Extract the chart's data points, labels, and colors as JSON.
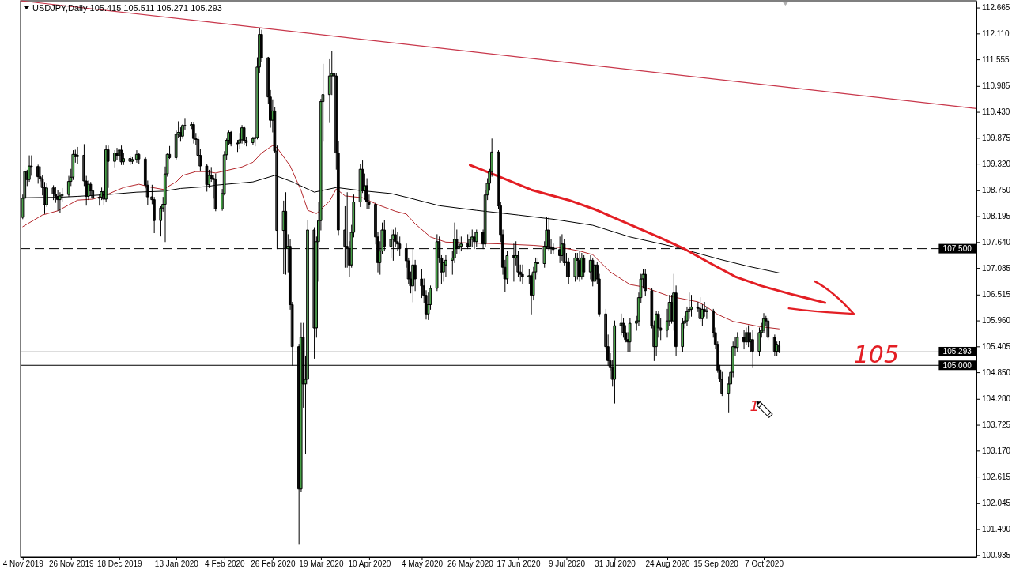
{
  "chart_data": {
    "type": "candlestick",
    "title": "USDJPY,Daily 105.415 105.511 105.271 105.293",
    "x": [
      "2019-11-04",
      "2019-11-05",
      "2019-11-06",
      "2019-11-07",
      "2019-11-08",
      "2019-11-11",
      "2019-11-12",
      "2019-11-13",
      "2019-11-14",
      "2019-11-15",
      "2019-11-18",
      "2019-11-19",
      "2019-11-20",
      "2019-11-21",
      "2019-11-22",
      "2019-11-25",
      "2019-11-26",
      "2019-11-27",
      "2019-11-28",
      "2019-11-29",
      "2019-12-02",
      "2019-12-03",
      "2019-12-04",
      "2019-12-05",
      "2019-12-06",
      "2019-12-09",
      "2019-12-10",
      "2019-12-11",
      "2019-12-12",
      "2019-12-13",
      "2019-12-16",
      "2019-12-17",
      "2019-12-18",
      "2019-12-19",
      "2019-12-20",
      "2019-12-23",
      "2019-12-24",
      "2019-12-26",
      "2019-12-27",
      "2019-12-30",
      "2019-12-31",
      "2020-01-02",
      "2020-01-03",
      "2020-01-06",
      "2020-01-07",
      "2020-01-08",
      "2020-01-09",
      "2020-01-10",
      "2020-01-13",
      "2020-01-14",
      "2020-01-15",
      "2020-01-16",
      "2020-01-17",
      "2020-01-20",
      "2020-01-21",
      "2020-01-22",
      "2020-01-23",
      "2020-01-24",
      "2020-01-27",
      "2020-01-28",
      "2020-01-29",
      "2020-01-30",
      "2020-01-31",
      "2020-02-03",
      "2020-02-04",
      "2020-02-05",
      "2020-02-06",
      "2020-02-07",
      "2020-02-10",
      "2020-02-11",
      "2020-02-12",
      "2020-02-13",
      "2020-02-14",
      "2020-02-17",
      "2020-02-18",
      "2020-02-19",
      "2020-02-20",
      "2020-02-21",
      "2020-02-24",
      "2020-02-25",
      "2020-02-26",
      "2020-02-27",
      "2020-02-28",
      "2020-03-02",
      "2020-03-03",
      "2020-03-04",
      "2020-03-05",
      "2020-03-06",
      "2020-03-09",
      "2020-03-10",
      "2020-03-11",
      "2020-03-12",
      "2020-03-13",
      "2020-03-16",
      "2020-03-17",
      "2020-03-18",
      "2020-03-19",
      "2020-03-20",
      "2020-03-23",
      "2020-03-24",
      "2020-03-25",
      "2020-03-26",
      "2020-03-27",
      "2020-03-30",
      "2020-03-31",
      "2020-04-01",
      "2020-04-02",
      "2020-04-03",
      "2020-04-06",
      "2020-04-07",
      "2020-04-08",
      "2020-04-09",
      "2020-04-10",
      "2020-04-13",
      "2020-04-14",
      "2020-04-15",
      "2020-04-16",
      "2020-04-17",
      "2020-04-20",
      "2020-04-21",
      "2020-04-22",
      "2020-04-23",
      "2020-04-24",
      "2020-04-27",
      "2020-04-28",
      "2020-04-29",
      "2020-04-30",
      "2020-05-01",
      "2020-05-04",
      "2020-05-05",
      "2020-05-06",
      "2020-05-07",
      "2020-05-08",
      "2020-05-11",
      "2020-05-12",
      "2020-05-13",
      "2020-05-14",
      "2020-05-15",
      "2020-05-18",
      "2020-05-19",
      "2020-05-20",
      "2020-05-21",
      "2020-05-22",
      "2020-05-25",
      "2020-05-26",
      "2020-05-27",
      "2020-05-28",
      "2020-05-29",
      "2020-06-01",
      "2020-06-02",
      "2020-06-03",
      "2020-06-04",
      "2020-06-05",
      "2020-06-08",
      "2020-06-09",
      "2020-06-10",
      "2020-06-11",
      "2020-06-12",
      "2020-06-15",
      "2020-06-16",
      "2020-06-17",
      "2020-06-18",
      "2020-06-19",
      "2020-06-22",
      "2020-06-23",
      "2020-06-24",
      "2020-06-25",
      "2020-06-26",
      "2020-06-29",
      "2020-06-30",
      "2020-07-01",
      "2020-07-02",
      "2020-07-03",
      "2020-07-06",
      "2020-07-07",
      "2020-07-08",
      "2020-07-09",
      "2020-07-10",
      "2020-07-13",
      "2020-07-14",
      "2020-07-15",
      "2020-07-16",
      "2020-07-17",
      "2020-07-20",
      "2020-07-21",
      "2020-07-22",
      "2020-07-23",
      "2020-07-24",
      "2020-07-27",
      "2020-07-28",
      "2020-07-29",
      "2020-07-30",
      "2020-07-31",
      "2020-08-03",
      "2020-08-04",
      "2020-08-05",
      "2020-08-06",
      "2020-08-07",
      "2020-08-10",
      "2020-08-11",
      "2020-08-12",
      "2020-08-13",
      "2020-08-14",
      "2020-08-17",
      "2020-08-18",
      "2020-08-19",
      "2020-08-20",
      "2020-08-21",
      "2020-08-24",
      "2020-08-25",
      "2020-08-26",
      "2020-08-27",
      "2020-08-28",
      "2020-08-31",
      "2020-09-01",
      "2020-09-02",
      "2020-09-03",
      "2020-09-04",
      "2020-09-07",
      "2020-09-08",
      "2020-09-09",
      "2020-09-10",
      "2020-09-11",
      "2020-09-14",
      "2020-09-15",
      "2020-09-16",
      "2020-09-17",
      "2020-09-18",
      "2020-09-21",
      "2020-09-22",
      "2020-09-23",
      "2020-09-24",
      "2020-09-25",
      "2020-09-28",
      "2020-09-29",
      "2020-09-30",
      "2020-10-01",
      "2020-10-02",
      "2020-10-05",
      "2020-10-06",
      "2020-10-07",
      "2020-10-08",
      "2020-10-09",
      "2020-10-12",
      "2020-10-13",
      "2020-10-14"
    ],
    "ohlc": [
      [
        108.17,
        108.65,
        108.14,
        108.58
      ],
      [
        108.58,
        109.24,
        108.55,
        109.15
      ],
      [
        109.15,
        109.18,
        108.85,
        108.98
      ],
      [
        108.98,
        109.49,
        108.94,
        109.27
      ],
      [
        109.27,
        109.49,
        109.07,
        109.26
      ],
      [
        109.26,
        109.29,
        108.9,
        109.04
      ],
      [
        109.04,
        109.25,
        108.95,
        109.0
      ],
      [
        109.0,
        109.06,
        108.65,
        108.81
      ],
      [
        108.81,
        108.92,
        108.25,
        108.44
      ],
      [
        108.44,
        108.9,
        108.4,
        108.8
      ],
      [
        108.8,
        108.85,
        108.55,
        108.67
      ],
      [
        108.67,
        108.82,
        108.49,
        108.62
      ],
      [
        108.62,
        108.74,
        108.32,
        108.55
      ],
      [
        108.55,
        108.7,
        108.28,
        108.63
      ],
      [
        108.63,
        108.79,
        108.52,
        108.66
      ],
      [
        108.66,
        109.05,
        108.62,
        108.94
      ],
      [
        108.94,
        109.2,
        108.85,
        109.03
      ],
      [
        109.03,
        109.6,
        108.98,
        109.52
      ],
      [
        109.52,
        109.61,
        109.35,
        109.47
      ],
      [
        109.47,
        109.67,
        109.32,
        109.5
      ],
      [
        109.5,
        109.73,
        108.85,
        108.95
      ],
      [
        108.95,
        109.05,
        108.43,
        108.62
      ],
      [
        108.62,
        108.95,
        108.55,
        108.88
      ],
      [
        108.88,
        108.92,
        108.65,
        108.74
      ],
      [
        108.74,
        108.93,
        108.45,
        108.58
      ],
      [
        108.58,
        108.66,
        108.43,
        108.6
      ],
      [
        108.6,
        108.8,
        108.55,
        108.72
      ],
      [
        108.72,
        108.76,
        108.44,
        108.56
      ],
      [
        108.56,
        109.7,
        108.5,
        109.62
      ],
      [
        109.62,
        109.7,
        108.81,
        109.37
      ],
      [
        109.37,
        109.6,
        109.25,
        109.55
      ],
      [
        109.55,
        109.65,
        109.4,
        109.49
      ],
      [
        109.49,
        109.62,
        109.4,
        109.61
      ],
      [
        109.61,
        109.7,
        109.3,
        109.36
      ],
      [
        109.36,
        109.55,
        109.3,
        109.43
      ],
      [
        109.43,
        109.48,
        109.3,
        109.37
      ],
      [
        109.37,
        109.45,
        109.33,
        109.41
      ],
      [
        109.41,
        109.6,
        109.35,
        109.52
      ],
      [
        109.52,
        109.55,
        109.33,
        109.42
      ],
      [
        109.42,
        109.45,
        108.8,
        108.86
      ],
      [
        108.86,
        108.95,
        108.45,
        108.61
      ],
      [
        108.61,
        108.86,
        108.46,
        108.55
      ],
      [
        108.55,
        108.6,
        107.84,
        108.1
      ],
      [
        108.1,
        108.4,
        107.77,
        108.37
      ],
      [
        108.37,
        108.6,
        108.3,
        108.45
      ],
      [
        108.45,
        109.25,
        107.65,
        109.1
      ],
      [
        109.1,
        109.55,
        109.05,
        109.52
      ],
      [
        109.52,
        109.69,
        109.43,
        109.45
      ],
      [
        109.45,
        110.02,
        109.42,
        109.95
      ],
      [
        109.95,
        110.22,
        109.88,
        109.99
      ],
      [
        109.99,
        110.09,
        109.8,
        109.91
      ],
      [
        109.91,
        110.16,
        109.86,
        110.14
      ],
      [
        110.14,
        110.29,
        110.06,
        110.13
      ],
      [
        110.13,
        110.2,
        110.07,
        110.16
      ],
      [
        110.16,
        110.2,
        109.76,
        109.86
      ],
      [
        109.86,
        109.97,
        109.72,
        109.84
      ],
      [
        109.84,
        109.9,
        109.46,
        109.5
      ],
      [
        109.5,
        109.62,
        109.16,
        109.27
      ],
      [
        109.27,
        109.3,
        108.73,
        108.87
      ],
      [
        108.87,
        109.18,
        108.81,
        109.07
      ],
      [
        109.07,
        109.24,
        108.94,
        109.01
      ],
      [
        109.01,
        109.06,
        108.58,
        108.98
      ],
      [
        108.98,
        109.1,
        108.31,
        108.35
      ],
      [
        108.35,
        108.77,
        108.32,
        108.68
      ],
      [
        108.68,
        109.58,
        108.65,
        109.51
      ],
      [
        109.51,
        109.85,
        109.4,
        109.82
      ],
      [
        109.82,
        110.02,
        109.72,
        109.99
      ],
      [
        109.99,
        110.01,
        109.7,
        109.75
      ],
      [
        109.75,
        109.82,
        109.58,
        109.76
      ],
      [
        109.76,
        109.97,
        109.64,
        109.83
      ],
      [
        109.83,
        110.14,
        109.76,
        110.09
      ],
      [
        110.09,
        110.1,
        109.74,
        109.82
      ],
      [
        109.82,
        109.89,
        109.7,
        109.77
      ],
      [
        109.77,
        109.89,
        109.73,
        109.86
      ],
      [
        109.86,
        109.95,
        109.7,
        109.88
      ],
      [
        109.88,
        111.59,
        109.85,
        111.39
      ],
      [
        111.39,
        112.22,
        111.27,
        112.09
      ],
      [
        112.09,
        112.18,
        111.51,
        111.59
      ],
      [
        111.59,
        111.6,
        110.6,
        110.75
      ],
      [
        110.75,
        110.89,
        110.1,
        110.25
      ],
      [
        110.25,
        110.69,
        110.0,
        110.45
      ],
      [
        110.45,
        110.53,
        109.55,
        109.59
      ],
      [
        109.59,
        109.7,
        107.5,
        107.89
      ],
      [
        107.89,
        108.52,
        106.96,
        108.3
      ],
      [
        108.3,
        108.7,
        106.95,
        107.5
      ],
      [
        107.5,
        107.8,
        107.0,
        107.55
      ],
      [
        107.55,
        107.7,
        106.2,
        106.3
      ],
      [
        106.3,
        106.35,
        105.0,
        105.4
      ],
      [
        105.4,
        105.45,
        101.18,
        102.35
      ],
      [
        102.35,
        105.9,
        102.3,
        105.6
      ],
      [
        105.6,
        105.9,
        104.1,
        104.6
      ],
      [
        104.6,
        105.2,
        103.1,
        104.7
      ],
      [
        104.7,
        108.1,
        104.6,
        107.9
      ],
      [
        107.9,
        107.95,
        105.15,
        105.8
      ],
      [
        105.8,
        107.75,
        105.6,
        107.65
      ],
      [
        107.65,
        108.5,
        106.8,
        108.1
      ],
      [
        108.1,
        110.7,
        107.9,
        110.65
      ],
      [
        110.65,
        111.45,
        109.8,
        110.8
      ],
      [
        110.8,
        111.55,
        110.2,
        111.2
      ],
      [
        111.2,
        111.72,
        110.8,
        111.25
      ],
      [
        111.25,
        111.7,
        110.7,
        111.2
      ],
      [
        111.2,
        111.25,
        109.2,
        109.55
      ],
      [
        109.55,
        109.8,
        107.8,
        107.9
      ],
      [
        107.9,
        108.4,
        107.1,
        107.55
      ],
      [
        107.55,
        108.7,
        107.1,
        107.5
      ],
      [
        107.5,
        107.65,
        106.9,
        107.15
      ],
      [
        107.15,
        108.0,
        107.1,
        107.85
      ],
      [
        107.85,
        108.65,
        107.75,
        108.5
      ],
      [
        108.5,
        109.3,
        108.4,
        109.2
      ],
      [
        109.2,
        109.38,
        108.7,
        108.75
      ],
      [
        108.75,
        109.1,
        108.55,
        108.85
      ],
      [
        108.85,
        109.0,
        108.35,
        108.5
      ],
      [
        108.5,
        108.65,
        108.35,
        108.45
      ],
      [
        108.45,
        108.5,
        107.6,
        107.75
      ],
      [
        107.75,
        107.85,
        107.0,
        107.2
      ],
      [
        107.2,
        107.65,
        106.95,
        107.45
      ],
      [
        107.45,
        108.05,
        107.4,
        107.9
      ],
      [
        107.9,
        108.1,
        107.45,
        107.55
      ],
      [
        107.55,
        107.9,
        107.3,
        107.7
      ],
      [
        107.7,
        107.9,
        107.25,
        107.8
      ],
      [
        107.8,
        107.95,
        107.55,
        107.65
      ],
      [
        107.65,
        107.85,
        107.45,
        107.6
      ],
      [
        107.6,
        107.75,
        107.35,
        107.5
      ],
      [
        107.5,
        107.6,
        107.1,
        107.24
      ],
      [
        107.24,
        107.3,
        106.75,
        106.85
      ],
      [
        106.85,
        107.0,
        106.55,
        106.7
      ],
      [
        106.7,
        107.5,
        106.36,
        107.15
      ],
      [
        107.15,
        107.25,
        106.6,
        106.85
      ],
      [
        106.85,
        107.05,
        106.45,
        106.7
      ],
      [
        106.7,
        106.85,
        106.35,
        106.5
      ],
      [
        106.5,
        106.6,
        105.99,
        106.1
      ],
      [
        106.1,
        106.55,
        105.98,
        106.3
      ],
      [
        106.3,
        106.7,
        106.2,
        106.65
      ],
      [
        106.65,
        107.8,
        106.6,
        107.65
      ],
      [
        107.65,
        107.75,
        107.2,
        107.3
      ],
      [
        107.3,
        107.35,
        106.75,
        107.0
      ],
      [
        107.0,
        107.3,
        106.8,
        107.2
      ],
      [
        107.15,
        107.35,
        106.9,
        107.25
      ],
      [
        107.25,
        107.45,
        106.95,
        107.3
      ],
      [
        107.3,
        108.05,
        107.2,
        107.7
      ],
      [
        107.7,
        107.9,
        107.4,
        107.5
      ],
      [
        107.5,
        107.75,
        107.4,
        107.55
      ],
      [
        107.55,
        107.75,
        107.45,
        107.6
      ],
      [
        107.6,
        107.8,
        107.5,
        107.55
      ],
      [
        107.55,
        107.85,
        107.5,
        107.7
      ],
      [
        107.7,
        107.9,
        107.55,
        107.75
      ],
      [
        107.75,
        107.85,
        107.5,
        107.65
      ],
      [
        107.65,
        107.9,
        107.55,
        107.85
      ],
      [
        107.85,
        107.9,
        107.5,
        107.6
      ],
      [
        107.6,
        108.75,
        107.55,
        108.65
      ],
      [
        108.65,
        109.0,
        108.55,
        108.9
      ],
      [
        108.9,
        109.2,
        108.75,
        109.15
      ],
      [
        109.15,
        109.85,
        109.05,
        109.57
      ],
      [
        109.57,
        109.6,
        108.35,
        108.42
      ],
      [
        108.42,
        108.5,
        107.65,
        107.8
      ],
      [
        107.8,
        107.9,
        106.95,
        107.1
      ],
      [
        107.1,
        107.25,
        106.58,
        106.85
      ],
      [
        106.85,
        107.45,
        106.75,
        107.35
      ],
      [
        107.35,
        107.6,
        106.8,
        107.3
      ],
      [
        107.3,
        107.65,
        107.15,
        107.35
      ],
      [
        107.35,
        107.45,
        106.9,
        107.0
      ],
      [
        107.0,
        107.15,
        106.8,
        106.95
      ],
      [
        106.95,
        107.15,
        106.75,
        106.9
      ],
      [
        106.9,
        107.05,
        106.75,
        106.92
      ],
      [
        106.92,
        106.95,
        106.1,
        106.5
      ],
      [
        106.5,
        107.1,
        106.4,
        107.0
      ],
      [
        107.0,
        107.3,
        106.85,
        107.2
      ],
      [
        107.2,
        107.3,
        106.95,
        107.18
      ],
      [
        107.18,
        107.65,
        107.1,
        107.55
      ],
      [
        107.55,
        108.17,
        107.5,
        107.9
      ],
      [
        107.9,
        108.16,
        107.45,
        107.5
      ],
      [
        107.5,
        107.7,
        107.4,
        107.52
      ],
      [
        107.52,
        107.6,
        107.4,
        107.48
      ],
      [
        107.48,
        107.75,
        107.2,
        107.35
      ],
      [
        107.35,
        107.8,
        107.25,
        107.6
      ],
      [
        107.6,
        107.7,
        107.15,
        107.2
      ],
      [
        107.2,
        107.4,
        106.9,
        107.22
      ],
      [
        107.22,
        107.3,
        106.75,
        106.9
      ],
      [
        106.9,
        107.4,
        106.8,
        107.3
      ],
      [
        107.3,
        107.4,
        106.85,
        107.25
      ],
      [
        107.25,
        107.45,
        106.8,
        106.9
      ],
      [
        106.9,
        107.4,
        106.85,
        107.3
      ],
      [
        107.3,
        107.35,
        106.9,
        107.0
      ],
      [
        107.0,
        107.35,
        106.85,
        107.25
      ],
      [
        107.25,
        107.3,
        106.7,
        106.8
      ],
      [
        106.8,
        107.25,
        106.65,
        107.15
      ],
      [
        107.15,
        107.2,
        106.75,
        106.85
      ],
      [
        106.85,
        106.95,
        106.05,
        106.1
      ],
      [
        106.1,
        106.2,
        105.35,
        105.4
      ],
      [
        105.4,
        105.65,
        105.0,
        105.1
      ],
      [
        105.1,
        105.25,
        104.9,
        104.95
      ],
      [
        104.95,
        105.1,
        104.55,
        104.7
      ],
      [
        104.7,
        105.95,
        104.19,
        105.85
      ],
      [
        105.85,
        106.1,
        105.65,
        105.9
      ],
      [
        105.9,
        106.0,
        105.6,
        105.7
      ],
      [
        105.7,
        105.85,
        105.5,
        105.55
      ],
      [
        105.55,
        105.7,
        105.3,
        105.5
      ],
      [
        105.5,
        106.0,
        105.3,
        105.9
      ],
      [
        105.9,
        106.05,
        105.75,
        105.95
      ],
      [
        105.95,
        106.55,
        105.85,
        106.45
      ],
      [
        106.45,
        106.95,
        106.35,
        106.85
      ],
      [
        106.85,
        107.05,
        106.65,
        106.95
      ],
      [
        106.95,
        107.05,
        106.5,
        106.6
      ],
      [
        106.6,
        106.65,
        105.8,
        105.85
      ],
      [
        105.85,
        105.95,
        105.1,
        105.4
      ],
      [
        105.4,
        106.15,
        105.2,
        106.1
      ],
      [
        106.1,
        106.15,
        105.6,
        105.8
      ],
      [
        105.8,
        106.0,
        105.55,
        105.75
      ],
      [
        105.75,
        106.2,
        105.6,
        105.95
      ],
      [
        105.95,
        106.5,
        105.85,
        106.35
      ],
      [
        106.35,
        106.5,
        105.9,
        105.95
      ],
      [
        105.95,
        106.95,
        105.75,
        106.55
      ],
      [
        106.55,
        106.7,
        105.2,
        105.4
      ],
      [
        105.4,
        106.0,
        105.3,
        105.9
      ],
      [
        105.9,
        106.05,
        105.8,
        105.95
      ],
      [
        105.95,
        106.25,
        105.85,
        106.15
      ],
      [
        106.15,
        106.55,
        106.0,
        106.2
      ],
      [
        106.2,
        106.5,
        106.05,
        106.25
      ],
      [
        106.25,
        106.35,
        106.15,
        106.22
      ],
      [
        106.22,
        106.45,
        105.95,
        106.0
      ],
      [
        106.0,
        106.3,
        105.85,
        106.2
      ],
      [
        106.2,
        106.35,
        106.05,
        106.15
      ],
      [
        106.15,
        106.25,
        106.0,
        106.17
      ],
      [
        106.17,
        106.2,
        105.6,
        105.7
      ],
      [
        105.7,
        105.8,
        105.35,
        105.45
      ],
      [
        105.45,
        105.5,
        104.85,
        104.9
      ],
      [
        104.9,
        105.0,
        104.65,
        104.7
      ],
      [
        104.7,
        104.85,
        104.35,
        104.4
      ],
      [
        104.4,
        104.75,
        104.0,
        104.6
      ],
      [
        104.6,
        104.95,
        104.45,
        104.85
      ],
      [
        104.85,
        105.5,
        104.75,
        105.4
      ],
      [
        105.4,
        105.6,
        105.2,
        105.38
      ],
      [
        105.38,
        105.7,
        105.3,
        105.6
      ],
      [
        105.6,
        105.75,
        105.35,
        105.5
      ],
      [
        105.5,
        105.8,
        105.45,
        105.7
      ],
      [
        105.7,
        105.85,
        105.4,
        105.5
      ],
      [
        105.5,
        105.7,
        105.3,
        105.55
      ],
      [
        105.55,
        105.75,
        104.95,
        105.3
      ],
      [
        105.3,
        105.8,
        105.2,
        105.7
      ],
      [
        105.7,
        105.9,
        105.6,
        105.75
      ],
      [
        105.75,
        106.11,
        105.7,
        106.0
      ],
      [
        106.0,
        106.05,
        105.85,
        105.95
      ],
      [
        105.95,
        106.0,
        105.55,
        105.6
      ],
      [
        105.6,
        105.65,
        105.2,
        105.3
      ],
      [
        105.3,
        105.5,
        105.2,
        105.45
      ],
      [
        105.415,
        105.511,
        105.271,
        105.293
      ]
    ],
    "series": [
      {
        "type": "line",
        "color": "#b4282d",
        "x": [
          "2019-11-04",
          "2019-11-13",
          "2019-11-20",
          "2019-11-29",
          "2019-12-06",
          "2019-12-13",
          "2019-12-20",
          "2019-12-27",
          "2020-01-02",
          "2020-01-07",
          "2020-01-13",
          "2020-01-16",
          "2020-01-22",
          "2020-01-27",
          "2020-01-31",
          "2020-02-12",
          "2020-02-17",
          "2020-02-21",
          "2020-02-26",
          "2020-02-28",
          "2020-03-05",
          "2020-03-10",
          "2020-03-13",
          "2020-03-17",
          "2020-03-23",
          "2020-03-26",
          "2020-03-30",
          "2020-04-07",
          "2020-04-14",
          "2020-04-22",
          "2020-04-27",
          "2020-05-01",
          "2020-05-08",
          "2020-05-15",
          "2020-05-27",
          "2020-06-10",
          "2020-06-24",
          "2020-07-07",
          "2020-07-15",
          "2020-07-21",
          "2020-07-29",
          "2020-08-07",
          "2020-08-13",
          "2020-08-25",
          "2020-09-07",
          "2020-09-10",
          "2020-09-16",
          "2020-09-23",
          "2020-10-05",
          "2020-10-14"
        ],
        "values": [
          107.97,
          108.22,
          108.31,
          108.54,
          108.56,
          108.67,
          108.81,
          108.88,
          108.81,
          108.77,
          108.93,
          109.07,
          109.15,
          109.15,
          109.12,
          109.25,
          109.35,
          109.55,
          109.71,
          109.66,
          109.27,
          108.74,
          108.32,
          108.25,
          108.52,
          108.78,
          108.63,
          108.59,
          108.44,
          108.3,
          108.24,
          108.03,
          107.75,
          107.64,
          107.62,
          107.6,
          107.57,
          107.52,
          107.45,
          107.37,
          107.0,
          106.73,
          106.68,
          106.48,
          106.36,
          106.28,
          106.09,
          105.94,
          105.83,
          105.78
        ]
      },
      {
        "type": "line",
        "color": "#000000",
        "x": [
          "2019-11-04",
          "2019-11-20",
          "2019-11-29",
          "2019-12-13",
          "2019-12-26",
          "2020-01-07",
          "2020-01-15",
          "2020-01-27",
          "2020-01-31",
          "2020-02-17",
          "2020-02-27",
          "2020-03-06",
          "2020-03-16",
          "2020-03-26",
          "2020-04-07",
          "2020-04-20",
          "2020-04-28",
          "2020-05-12",
          "2020-05-29",
          "2020-06-17",
          "2020-07-03",
          "2020-07-21",
          "2020-08-07",
          "2020-08-28",
          "2020-09-17",
          "2020-09-30",
          "2020-10-14"
        ],
        "values": [
          108.59,
          108.6,
          108.62,
          108.66,
          108.71,
          108.73,
          108.79,
          108.83,
          108.86,
          108.93,
          109.07,
          108.93,
          108.71,
          108.81,
          108.74,
          108.68,
          108.59,
          108.42,
          108.32,
          108.22,
          108.13,
          108.0,
          107.75,
          107.53,
          107.27,
          107.12,
          106.98
        ]
      },
      {
        "type": "line",
        "color": "#c8374b",
        "x": [
          "2019-11-03",
          "2021-01-12"
        ],
        "values": [
          112.81,
          110.5
        ]
      },
      {
        "type": "line",
        "color": "#e31e24",
        "x": [
          "2020-05-26",
          "2020-06-08",
          "2020-06-23",
          "2020-07-10",
          "2020-07-22",
          "2020-08-20",
          "2020-09-01",
          "2020-09-14",
          "2020-09-24",
          "2020-10-06",
          "2020-10-19",
          "2020-11-04"
        ],
        "values": [
          109.29,
          109.05,
          108.76,
          108.54,
          108.34,
          107.75,
          107.49,
          107.15,
          106.9,
          106.7,
          106.53,
          106.34
        ]
      }
    ],
    "xlim": [
      "2019-11-03",
      "2021-01-12"
    ],
    "xticks": [
      {
        "value": "2019-11-04",
        "label": "4 Nov 2019"
      },
      {
        "value": "2019-11-26",
        "label": "26 Nov 2019"
      },
      {
        "value": "2019-12-18",
        "label": "18 Dec 2019"
      },
      {
        "value": "2020-01-13",
        "label": "13 Jan 2020"
      },
      {
        "value": "2020-02-04",
        "label": "4 Feb 2020"
      },
      {
        "value": "2020-02-26",
        "label": "26 Feb 2020"
      },
      {
        "value": "2020-03-19",
        "label": "19 Mar 2020"
      },
      {
        "value": "2020-04-10",
        "label": "10 Apr 2020"
      },
      {
        "value": "2020-05-04",
        "label": "4 May 2020"
      },
      {
        "value": "2020-05-26",
        "label": "26 May 2020"
      },
      {
        "value": "2020-06-17",
        "label": "17 Jun 2020"
      },
      {
        "value": "2020-07-09",
        "label": "9 Jul 2020"
      },
      {
        "value": "2020-07-31",
        "label": "31 Jul 2020"
      },
      {
        "value": "2020-08-24",
        "label": "24 Aug 2020"
      },
      {
        "value": "2020-09-15",
        "label": "15 Sep 2020"
      },
      {
        "value": "2020-10-07",
        "label": "7 Oct 2020"
      }
    ],
    "ylim": [
      100.89,
      112.81
    ],
    "yticks": [
      112.665,
      {
        "value": 112.11,
        "label": "112.110"
      },
      111.555,
      110.985,
      {
        "value": 110.43,
        "label": "110.430"
      },
      109.875,
      {
        "value": 109.32,
        "label": "109.320"
      },
      {
        "value": 108.75,
        "label": "108.750"
      },
      108.195,
      {
        "value": 107.64,
        "label": "107.640"
      },
      107.085,
      106.515,
      {
        "value": 105.96,
        "label": "105.960"
      },
      105.405,
      {
        "value": 104.85,
        "label": "104.850"
      },
      {
        "value": 104.28,
        "label": "104.280"
      },
      103.725,
      {
        "value": 103.17,
        "label": "103.170"
      },
      102.615,
      102.045,
      {
        "value": 101.49,
        "label": "101.490"
      },
      100.935
    ],
    "ref_lines": [
      {
        "axis": "y",
        "value": 107.5,
        "label": "107.500",
        "color": "#000000",
        "line_style": "dashed"
      },
      {
        "axis": "y",
        "value": 105.293,
        "label": "105.293",
        "color": "#c0c0c0",
        "line_style": "solid"
      },
      {
        "axis": "y",
        "value": 105.0,
        "label": "105.000",
        "color": "#000000",
        "line_style": "solid"
      }
    ],
    "annotations": [
      {
        "text": "105",
        "x": "2020-11-17",
        "y": 105.0
      },
      "1"
    ]
  }
}
